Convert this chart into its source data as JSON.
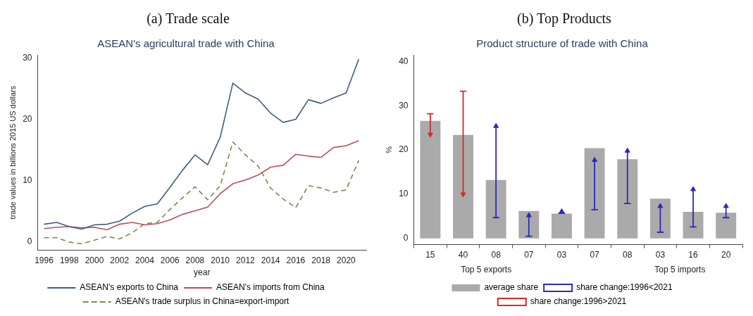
{
  "chart_data": [
    {
      "type": "line",
      "title": "(a) Trade scale",
      "subtitle": "ASEAN's agricultural trade with China",
      "xlabel": "year",
      "ylabel": "trade values in billions 2015 US dollars",
      "x": [
        1996,
        1997,
        1998,
        1999,
        2000,
        2001,
        2002,
        2003,
        2004,
        2005,
        2006,
        2007,
        2008,
        2009,
        2010,
        2011,
        2012,
        2013,
        2014,
        2015,
        2016,
        2017,
        2018,
        2019,
        2020,
        2021
      ],
      "series": [
        {
          "name": "ASEAN's exports to China",
          "color": "#3d5d80",
          "line_style": "solid",
          "values": [
            2.9,
            3.2,
            2.5,
            2.1,
            2.8,
            2.9,
            3.4,
            4.7,
            5.8,
            6.2,
            8.9,
            11.7,
            14.2,
            12.6,
            17.1,
            25.9,
            24.3,
            23.3,
            21.0,
            19.5,
            20.0,
            23.2,
            22.6,
            23.5,
            24.3,
            29.8
          ]
        },
        {
          "name": "ASEAN's imports from China",
          "color": "#b5505e",
          "line_style": "solid",
          "values": [
            2.2,
            2.4,
            2.5,
            2.3,
            2.4,
            2.0,
            2.9,
            3.2,
            2.8,
            3.0,
            3.6,
            4.5,
            5.1,
            5.7,
            7.9,
            9.5,
            10.1,
            10.9,
            12.2,
            12.5,
            14.3,
            14.0,
            13.8,
            15.4,
            15.7,
            16.5
          ]
        },
        {
          "name": "ASEAN's trade surplus in China=export-import",
          "color": "#6f8f45",
          "line_style": "dashed",
          "values": [
            0.7,
            0.7,
            0.0,
            -0.3,
            0.3,
            0.9,
            0.5,
            1.5,
            3.0,
            3.2,
            5.3,
            7.2,
            9.0,
            6.9,
            9.2,
            16.3,
            14.2,
            12.4,
            8.8,
            7.0,
            5.6,
            9.2,
            8.8,
            8.1,
            8.5,
            13.3
          ]
        }
      ],
      "xlim": [
        1995.5,
        2021.6
      ],
      "xticks": [
        1996,
        1998,
        2000,
        2002,
        2004,
        2006,
        2008,
        2010,
        2012,
        2014,
        2016,
        2018,
        2020
      ],
      "ylim": [
        -1.3,
        30.5
      ],
      "yticks": [
        0,
        10,
        20,
        30
      ],
      "grid": false,
      "legend": "bottom",
      "marker": "none"
    },
    {
      "type": "bar",
      "title": "(b) Top Products",
      "subtitle": "Product structure of trade with China",
      "ylabel": "%",
      "categories": [
        "15",
        "40",
        "08",
        "07",
        "03",
        "07",
        "08",
        "03",
        "16",
        "20"
      ],
      "series": [
        {
          "name": "average share",
          "type": "bar",
          "color": "#aaaaaa",
          "values": [
            26.6,
            23.4,
            13.2,
            6.2,
            5.6,
            20.4,
            17.9,
            9.0,
            6.0,
            5.8
          ]
        },
        {
          "name": "share change:1996<2021",
          "type": "scatter",
          "marker": "triangle",
          "color": "#2b2bb8",
          "values": [
            null,
            null,
            25.4,
            5.2,
            6.1,
            17.7,
            19.8,
            7.3,
            11.1,
            7.3
          ],
          "errors": [
            null,
            null,
            [
              4.7,
              25.4
            ],
            [
              0.5,
              5.2
            ],
            [
              5.7,
              6.1
            ],
            [
              6.5,
              17.7
            ],
            [
              7.9,
              19.8
            ],
            [
              1.4,
              7.3
            ],
            [
              2.6,
              11.1
            ],
            [
              4.7,
              7.3
            ]
          ]
        },
        {
          "name": "share change:1996>2021",
          "type": "scatter",
          "marker": "triangle",
          "color": "#d42a2a",
          "values": [
            23.5,
            10.0,
            null,
            null,
            null,
            null,
            null,
            null,
            null,
            null
          ],
          "errors": [
            [
              23.5,
              28.2
            ],
            [
              10.0,
              33.3
            ],
            null,
            null,
            null,
            null,
            null,
            null,
            null,
            null
          ]
        }
      ],
      "annotations": [
        "Top 5 exports",
        "Top 5 imports"
      ],
      "ylim": [
        -1.4,
        41.5
      ],
      "yticks": [
        0,
        10,
        20,
        30,
        40
      ],
      "grid": false,
      "legend": "bottom"
    }
  ]
}
